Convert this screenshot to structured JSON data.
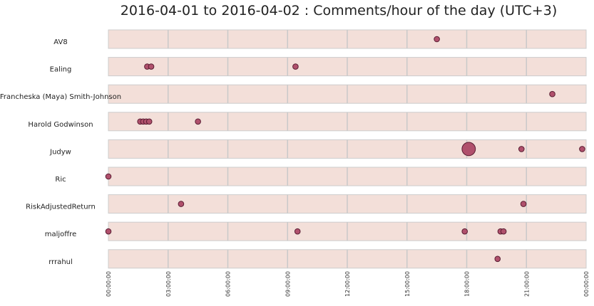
{
  "chart_data": {
    "type": "scatter",
    "title": "2016-04-01 to 2016-04-02 : Comments/hour of the day (UTC+3)",
    "xlabel": "",
    "ylabel": "",
    "xlim": [
      0,
      24
    ],
    "x_tick_labels": [
      "00:00:00",
      "03:00:00",
      "06:00:00",
      "09:00:00",
      "12:00:00",
      "15:00:00",
      "18:00:00",
      "21:00:00",
      "00:00:00"
    ],
    "grid": true,
    "colors": {
      "band_fill": "#f3dfd9",
      "band_border": "#cccccc",
      "grid": "#c9c9c9",
      "marker_fill": "#b0506c",
      "marker_edge": "#5a1e33"
    },
    "rows": [
      {
        "label": "AV8",
        "points": [
          {
            "x": 16.5,
            "size": 1
          }
        ]
      },
      {
        "label": "Ealing",
        "points": [
          {
            "x": 1.95,
            "size": 1
          },
          {
            "x": 2.15,
            "size": 1
          },
          {
            "x": 9.4,
            "size": 1
          }
        ]
      },
      {
        "label": "Francheska (Maya) Smith-Johnson",
        "points": [
          {
            "x": 22.3,
            "size": 1
          }
        ]
      },
      {
        "label": "Harold Godwinson",
        "points": [
          {
            "x": 1.6,
            "size": 1
          },
          {
            "x": 1.75,
            "size": 1
          },
          {
            "x": 1.9,
            "size": 1
          },
          {
            "x": 2.05,
            "size": 1
          },
          {
            "x": 4.5,
            "size": 1
          }
        ]
      },
      {
        "label": "Judyw",
        "points": [
          {
            "x": 18.1,
            "size": 5
          },
          {
            "x": 20.75,
            "size": 1
          },
          {
            "x": 23.8,
            "size": 1
          }
        ]
      },
      {
        "label": "Ric",
        "points": [
          {
            "x": 0.0,
            "size": 1
          }
        ]
      },
      {
        "label": "RiskAdjustedReturn",
        "points": [
          {
            "x": 3.65,
            "size": 1
          },
          {
            "x": 20.85,
            "size": 1
          }
        ]
      },
      {
        "label": "maljoffre",
        "points": [
          {
            "x": 0.0,
            "size": 1
          },
          {
            "x": 9.5,
            "size": 1
          },
          {
            "x": 17.9,
            "size": 1
          },
          {
            "x": 19.7,
            "size": 1
          },
          {
            "x": 19.85,
            "size": 1
          }
        ]
      },
      {
        "label": "rrrahul",
        "points": [
          {
            "x": 19.55,
            "size": 1
          }
        ]
      }
    ]
  }
}
